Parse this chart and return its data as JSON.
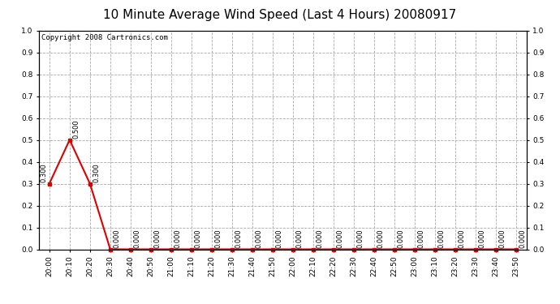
{
  "title": "10 Minute Average Wind Speed (Last 4 Hours) 20080917",
  "copyright_text": "Copyright 2008 Cartronics.com",
  "x_labels": [
    "20:00",
    "20:10",
    "20:20",
    "20:30",
    "20:40",
    "20:50",
    "21:00",
    "21:10",
    "21:20",
    "21:30",
    "21:40",
    "21:50",
    "22:00",
    "22:10",
    "22:20",
    "22:30",
    "22:40",
    "22:50",
    "23:00",
    "23:10",
    "23:20",
    "23:30",
    "23:40",
    "23:50"
  ],
  "y_values": [
    0.3,
    0.5,
    0.3,
    0.0,
    0.0,
    0.0,
    0.0,
    0.0,
    0.0,
    0.0,
    0.0,
    0.0,
    0.0,
    0.0,
    0.0,
    0.0,
    0.0,
    0.0,
    0.0,
    0.0,
    0.0,
    0.0,
    0.0,
    0.0
  ],
  "line_color": "#dd0000",
  "marker_color": "#dd0000",
  "marker_style": "s",
  "marker_size": 2.5,
  "ylim": [
    0.0,
    1.0
  ],
  "yticks_left": [
    0.0,
    0.1,
    0.2,
    0.3,
    0.4,
    0.5,
    0.6,
    0.7,
    0.8,
    0.9,
    1.0
  ],
  "yticks_right": [
    0.0,
    0.1,
    0.2,
    0.3,
    0.4,
    0.5,
    0.6,
    0.7,
    0.8,
    0.9,
    1.0
  ],
  "grid_color": "#aaaaaa",
  "grid_linestyle": "--",
  "background_color": "#ffffff",
  "plot_bg_color": "#ffffff",
  "title_fontsize": 11,
  "copyright_fontsize": 6.5,
  "label_fontsize": 6,
  "tick_fontsize": 6.5
}
